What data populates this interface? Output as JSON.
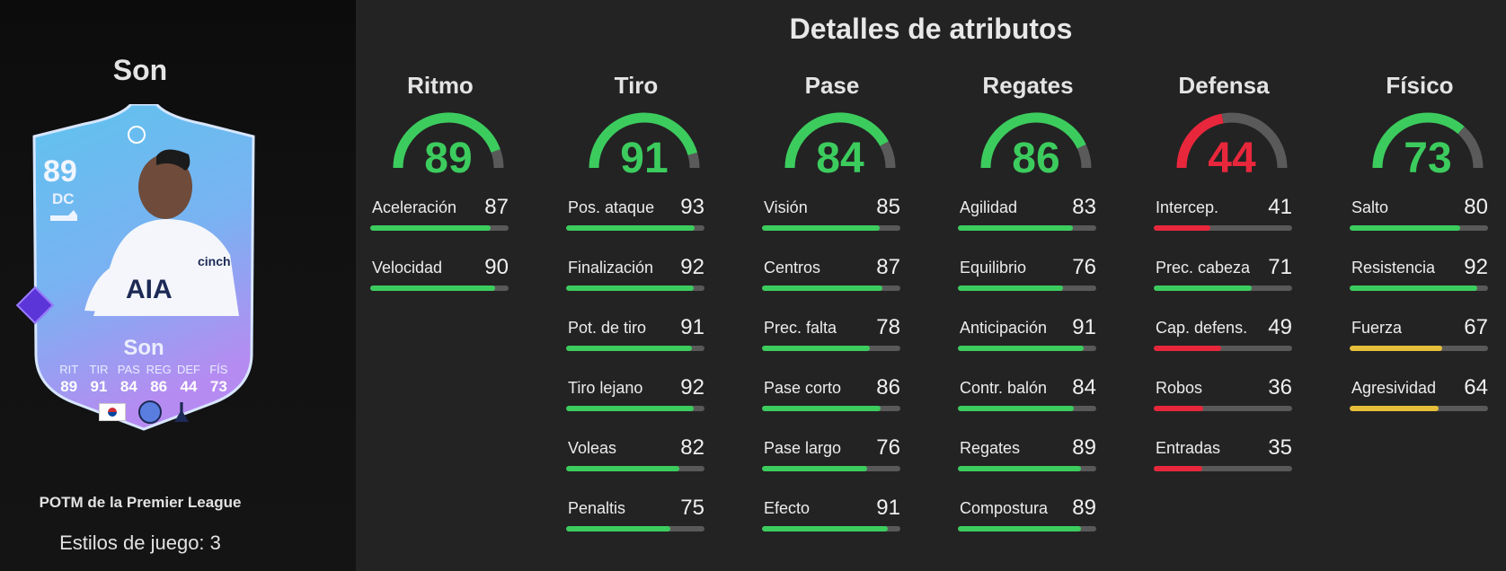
{
  "player": {
    "name": "Son",
    "card_rating": "89",
    "card_position": "DC",
    "card_name": "Son",
    "card_stats": [
      {
        "label": "RIT",
        "value": "89"
      },
      {
        "label": "TIR",
        "value": "91"
      },
      {
        "label": "PAS",
        "value": "84"
      },
      {
        "label": "REG",
        "value": "86"
      },
      {
        "label": "DEF",
        "value": "44"
      },
      {
        "label": "FÍS",
        "value": "73"
      }
    ],
    "card_subtitle": "POTM de la Premier League",
    "styles_text": "Estilos de juego: 3"
  },
  "title": "Detalles de atributos",
  "colors": {
    "green": "#3ccc5e",
    "red": "#e8273c",
    "yellow": "#e6bf3a",
    "track": "#595959"
  },
  "categories": [
    {
      "name": "Ritmo",
      "value": 89,
      "stats": [
        {
          "label": "Aceleración",
          "value": 87
        },
        {
          "label": "Velocidad",
          "value": 90
        }
      ]
    },
    {
      "name": "Tiro",
      "value": 91,
      "stats": [
        {
          "label": "Pos. ataque",
          "value": 93
        },
        {
          "label": "Finalización",
          "value": 92
        },
        {
          "label": "Pot. de tiro",
          "value": 91
        },
        {
          "label": "Tiro lejano",
          "value": 92
        },
        {
          "label": "Voleas",
          "value": 82
        },
        {
          "label": "Penaltis",
          "value": 75
        }
      ]
    },
    {
      "name": "Pase",
      "value": 84,
      "stats": [
        {
          "label": "Visión",
          "value": 85
        },
        {
          "label": "Centros",
          "value": 87
        },
        {
          "label": "Prec. falta",
          "value": 78
        },
        {
          "label": "Pase corto",
          "value": 86
        },
        {
          "label": "Pase largo",
          "value": 76
        },
        {
          "label": "Efecto",
          "value": 91
        }
      ]
    },
    {
      "name": "Regates",
      "value": 86,
      "stats": [
        {
          "label": "Agilidad",
          "value": 83
        },
        {
          "label": "Equilibrio",
          "value": 76
        },
        {
          "label": "Anticipación",
          "value": 91
        },
        {
          "label": "Contr. balón",
          "value": 84
        },
        {
          "label": "Regates",
          "value": 89
        },
        {
          "label": "Compostura",
          "value": 89
        }
      ]
    },
    {
      "name": "Defensa",
      "value": 44,
      "stats": [
        {
          "label": "Intercep.",
          "value": 41
        },
        {
          "label": "Prec. cabeza",
          "value": 71
        },
        {
          "label": "Cap. defens.",
          "value": 49
        },
        {
          "label": "Robos",
          "value": 36
        },
        {
          "label": "Entradas",
          "value": 35
        }
      ]
    },
    {
      "name": "Físico",
      "value": 73,
      "stats": [
        {
          "label": "Salto",
          "value": 80
        },
        {
          "label": "Resistencia",
          "value": 92
        },
        {
          "label": "Fuerza",
          "value": 67
        },
        {
          "label": "Agresividad",
          "value": 64
        }
      ]
    }
  ]
}
